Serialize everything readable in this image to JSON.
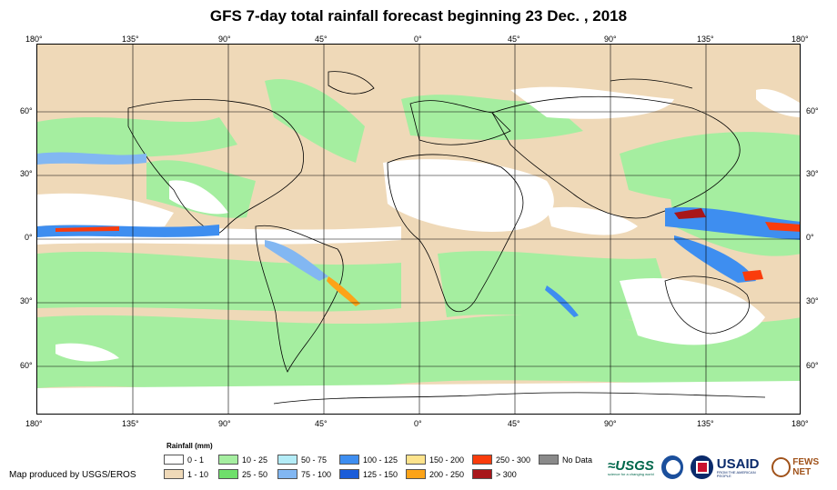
{
  "title": "GFS 7-day total rainfall forecast beginning 23 Dec. , 2018",
  "lon_ticks": [
    "180°",
    "135°",
    "90°",
    "45°",
    "0°",
    "45°",
    "90°",
    "135°",
    "180°"
  ],
  "lat_ticks": [
    "60°",
    "30°",
    "0°",
    "30°",
    "60°"
  ],
  "legend": {
    "title": "Rainfall (mm)",
    "items": [
      {
        "label": "0 - 1",
        "color": "#ffffff"
      },
      {
        "label": "1 - 10",
        "color": "#efd9b8"
      },
      {
        "label": "10 - 25",
        "color": "#a5eea0"
      },
      {
        "label": "25 - 50",
        "color": "#6fdf6b"
      },
      {
        "label": "50 - 75",
        "color": "#b4ecf7"
      },
      {
        "label": "75 - 100",
        "color": "#82b7f2"
      },
      {
        "label": "100 - 125",
        "color": "#3e8ef0"
      },
      {
        "label": "125 - 150",
        "color": "#1a5cd9"
      },
      {
        "label": "150 - 200",
        "color": "#fde38c"
      },
      {
        "label": "200 - 250",
        "color": "#fca318"
      },
      {
        "label": "250 - 300",
        "color": "#fa3c0c"
      },
      {
        "label": "> 300",
        "color": "#a8161a"
      },
      {
        "label": "No Data",
        "color": "#8a8a8a"
      }
    ]
  },
  "credit": "Map produced by USGS/EROS",
  "logos": {
    "usgs": "≈USGS",
    "usgs_tagline": "science for a changing world",
    "usaid": "USAID",
    "usaid_tagline": "FROM THE AMERICAN PEOPLE",
    "fews": "FEWS NET"
  },
  "colors": {
    "land_outline": "#000000",
    "dry": "#ffffff",
    "light": "#efd9b8",
    "green": "#a5eea0",
    "green_dark": "#6fdf6b",
    "blue": "#3e8ef0",
    "red": "#fa3c0c"
  }
}
